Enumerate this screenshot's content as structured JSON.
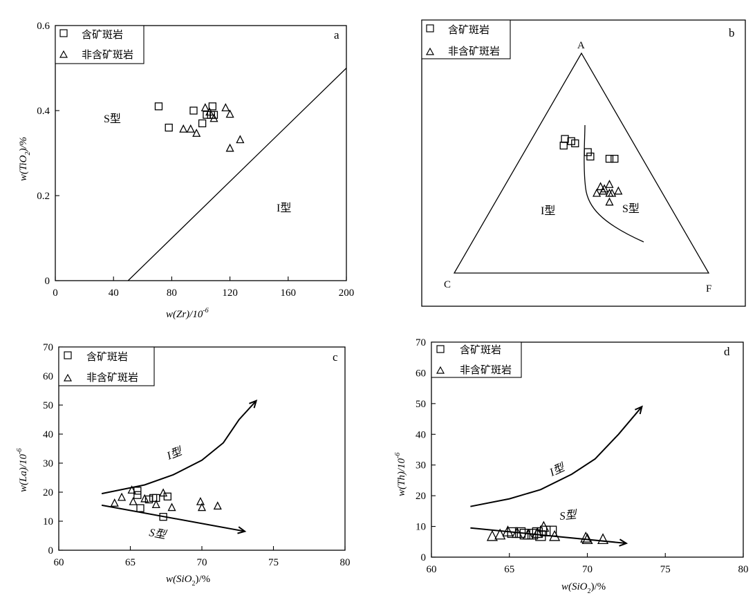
{
  "chart_data": [
    {
      "type": "scatter",
      "panel_letter": "a",
      "xlabel_base": "w(Zr)/10",
      "xlabel_sup": "-6",
      "ylabel_base": "w(TiO",
      "ylabel_sub": "2",
      "ylabel_tail": ")/%",
      "xlim": [
        0,
        200
      ],
      "ylim": [
        0,
        0.6
      ],
      "xticks": [
        0,
        40,
        80,
        120,
        160,
        200
      ],
      "yticks": [
        0,
        0.2,
        0.4,
        0.6
      ],
      "legend": [
        "含矿斑岩",
        "非含矿斑岩"
      ],
      "region_labels": [
        "S型",
        "I型"
      ],
      "boundary": [
        [
          50,
          0
        ],
        [
          200,
          0.5
        ]
      ],
      "series": [
        {
          "name": "含矿斑岩",
          "marker": "square",
          "points": [
            [
              71,
              0.41
            ],
            [
              78,
              0.36
            ],
            [
              95,
              0.4
            ],
            [
              101,
              0.37
            ],
            [
              104,
              0.39
            ],
            [
              107,
              0.39
            ],
            [
              108,
              0.41
            ],
            [
              109,
              0.39
            ]
          ]
        },
        {
          "name": "非含矿斑岩",
          "marker": "triangle",
          "points": [
            [
              88,
              0.355
            ],
            [
              93,
              0.355
            ],
            [
              97,
              0.345
            ],
            [
              103,
              0.405
            ],
            [
              106,
              0.395
            ],
            [
              109,
              0.38
            ],
            [
              117,
              0.405
            ],
            [
              120,
              0.31
            ],
            [
              120,
              0.39
            ],
            [
              127,
              0.33
            ]
          ]
        }
      ]
    },
    {
      "type": "ternary",
      "panel_letter": "b",
      "apex_labels": [
        "A",
        "C",
        "F"
      ],
      "legend": [
        "含矿斑岩",
        "非含矿斑岩"
      ],
      "region_labels": [
        "I型",
        "S型"
      ],
      "series": [
        {
          "name": "含矿斑岩",
          "marker": "square",
          "points": [
            [
              0.53,
              0.27
            ],
            [
              0.52,
              0.35
            ],
            [
              0.55,
              0.25
            ],
            [
              0.6,
              0.16
            ],
            [
              0.59,
              0.18
            ],
            [
              0.58,
              0.14
            ],
            [
              0.61,
              0.13
            ],
            [
              0.52,
              0.37
            ]
          ]
        },
        {
          "name": "非含矿斑岩",
          "marker": "triangle",
          "points": [
            [
              0.36,
              0.38
            ],
            [
              0.38,
              0.4
            ],
            [
              0.39,
              0.38
            ],
            [
              0.4,
              0.41
            ],
            [
              0.37,
              0.4
            ],
            [
              0.36,
              0.43
            ],
            [
              0.32,
              0.45
            ],
            [
              0.37,
              0.46
            ],
            [
              0.36,
              0.44
            ]
          ]
        }
      ]
    },
    {
      "type": "scatter",
      "panel_letter": "c",
      "xlabel_base": "w(SiO",
      "xlabel_sub": "2",
      "xlabel_tail": ")/%",
      "ylabel_base": "w(La)/10",
      "ylabel_sup": "-6",
      "xlim": [
        60,
        80
      ],
      "ylim": [
        0,
        70
      ],
      "xticks": [
        60,
        65,
        70,
        75,
        80
      ],
      "yticks": [
        0,
        10,
        20,
        30,
        40,
        50,
        60,
        70
      ],
      "legend": [
        "含矿斑岩",
        "非含矿斑岩"
      ],
      "trend_labels": [
        "I型",
        "S型"
      ],
      "trend_i": [
        [
          63,
          19.5
        ],
        [
          66,
          22.5
        ],
        [
          68,
          26
        ],
        [
          70,
          31
        ],
        [
          71.5,
          37
        ],
        [
          72.6,
          45
        ],
        [
          73.8,
          51.5
        ]
      ],
      "trend_s": [
        [
          63,
          15.5
        ],
        [
          73,
          6.5
        ]
      ],
      "series": [
        {
          "name": "含矿斑岩",
          "marker": "square",
          "points": [
            [
              65.5,
              20.5
            ],
            [
              65.5,
              19.0
            ],
            [
              65.7,
              14.5
            ],
            [
              66.3,
              17.5
            ],
            [
              66.6,
              18.0
            ],
            [
              66.8,
              18.0
            ],
            [
              67.3,
              11.5
            ],
            [
              67.6,
              18.5
            ]
          ]
        },
        {
          "name": "非含矿斑岩",
          "marker": "triangle",
          "points": [
            [
              63.9,
              16.0
            ],
            [
              64.4,
              18.0
            ],
            [
              65.1,
              20.5
            ],
            [
              65.2,
              16.5
            ],
            [
              66.0,
              17.5
            ],
            [
              66.8,
              15.5
            ],
            [
              67.3,
              19.5
            ],
            [
              67.9,
              14.5
            ],
            [
              69.9,
              16.5
            ],
            [
              70.0,
              14.5
            ],
            [
              71.1,
              15.0
            ]
          ]
        }
      ]
    },
    {
      "type": "scatter",
      "panel_letter": "d",
      "xlabel_base": "w(SiO",
      "xlabel_sub": "2",
      "xlabel_tail": ")/%",
      "ylabel_base": "w(Th)/10",
      "ylabel_sup": "-6",
      "xlim": [
        60,
        80
      ],
      "ylim": [
        0,
        70
      ],
      "xticks": [
        60,
        65,
        70,
        75,
        80
      ],
      "yticks": [
        0,
        10,
        20,
        30,
        40,
        50,
        60,
        70
      ],
      "legend": [
        "含矿斑岩",
        "非含矿斑岩"
      ],
      "trend_labels": [
        "I型",
        "S型"
      ],
      "trend_i": [
        [
          62.5,
          16.5
        ],
        [
          65,
          19
        ],
        [
          67,
          22
        ],
        [
          69,
          27
        ],
        [
          70.5,
          32
        ],
        [
          72,
          40
        ],
        [
          73.5,
          49
        ]
      ],
      "trend_s": [
        [
          62.5,
          9.5
        ],
        [
          72.5,
          4.5
        ]
      ],
      "series": [
        {
          "name": "含矿斑岩",
          "marker": "square",
          "points": [
            [
              65.2,
              8.0
            ],
            [
              65.7,
              8.0
            ],
            [
              66.0,
              7.5
            ],
            [
              66.5,
              7.5
            ],
            [
              66.8,
              8.0
            ],
            [
              67.0,
              7.0
            ],
            [
              67.3,
              8.5
            ],
            [
              67.7,
              8.5
            ]
          ]
        },
        {
          "name": "非含矿斑岩",
          "marker": "triangle",
          "points": [
            [
              63.9,
              6.5
            ],
            [
              64.4,
              7.0
            ],
            [
              64.9,
              8.0
            ],
            [
              65.5,
              7.5
            ],
            [
              66.2,
              7.0
            ],
            [
              66.8,
              7.5
            ],
            [
              67.2,
              9.5
            ],
            [
              67.9,
              6.5
            ],
            [
              69.9,
              6.0
            ],
            [
              70.0,
              5.5
            ],
            [
              71.0,
              5.5
            ]
          ]
        }
      ]
    }
  ]
}
